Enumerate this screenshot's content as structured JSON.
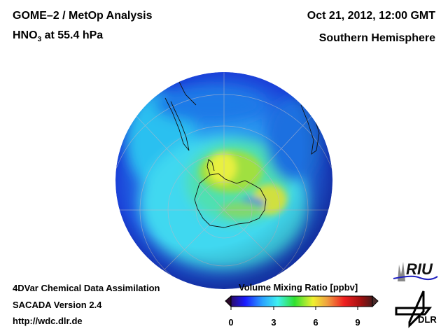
{
  "header": {
    "title_line1": "GOME–2 / MetOp Analysis",
    "species": "HNO",
    "species_sub": "3",
    "level": " at 55.4 hPa",
    "date": "Oct 21, 2012, 12:00 GMT",
    "region": "Southern Hemisphere"
  },
  "footer": {
    "line1": "4DVar Chemical Data Assimilation",
    "line2": "SACADA Version 2.4",
    "line3": "http://wdc.dlr.de"
  },
  "colorbar": {
    "title": "Volume Mixing Ratio [ppbv]",
    "ticks": [
      "0",
      "3",
      "6",
      "9"
    ],
    "range": [
      0,
      10
    ],
    "colors": [
      "#2a0a6a",
      "#1a1aff",
      "#2aa0ff",
      "#3ff0f0",
      "#30e030",
      "#f0f030",
      "#f0a040",
      "#f02020",
      "#a01010",
      "#4a1a1a"
    ]
  },
  "logos": {
    "riu": "RIU",
    "dlr": "DLR"
  }
}
